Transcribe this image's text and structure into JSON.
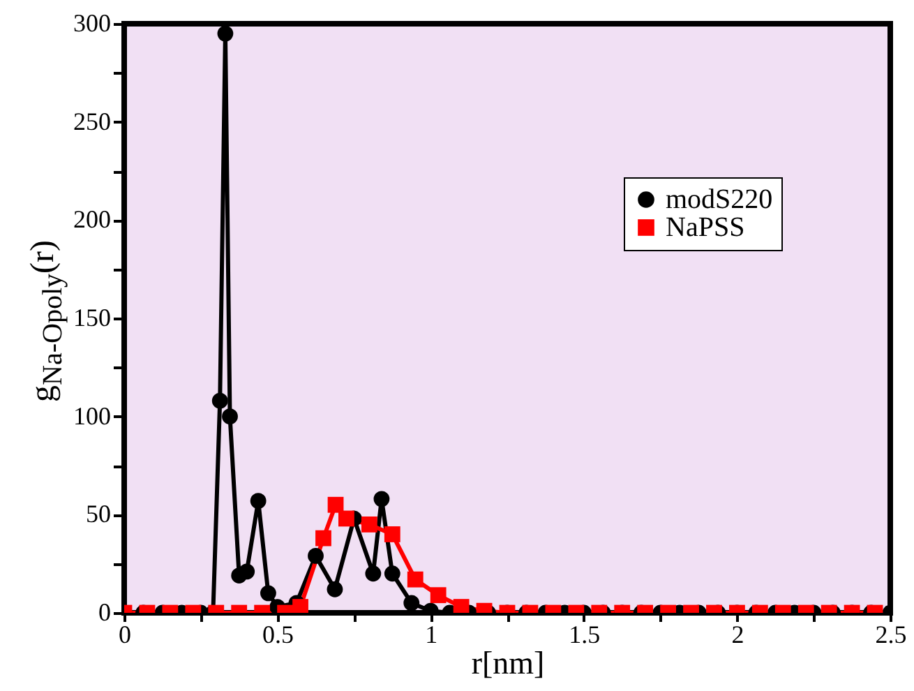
{
  "chart_data": {
    "type": "line",
    "xlabel": "r[nm]",
    "ylabel": "g$_{Na-Opoly}$(r)",
    "xlim": [
      0,
      2.5
    ],
    "xticks": [
      0,
      {
        "value": 0.25,
        "label": null
      },
      0.5,
      {
        "value": 0.75,
        "label": null
      },
      1,
      {
        "value": 1.25,
        "label": null
      },
      1.5,
      {
        "value": 1.75,
        "label": null
      },
      2,
      {
        "value": 2.25,
        "label": null
      },
      2.5
    ],
    "ylim": [
      0,
      300
    ],
    "yticks": [
      0,
      {
        "value": 25,
        "label": null
      },
      50,
      {
        "value": 75,
        "label": null
      },
      100,
      {
        "value": 125,
        "label": null
      },
      150,
      {
        "value": 175,
        "label": null
      },
      200,
      {
        "value": 225,
        "label": null
      },
      250,
      {
        "value": 275,
        "label": null
      },
      300
    ],
    "grid": false,
    "legend": "top right",
    "line_style": "solid",
    "series": [
      {
        "name": "modS220",
        "color": "#000000",
        "marker": "circle",
        "x": [
          0,
          0.0625,
          0.125,
          0.1875,
          0.25,
          0.29,
          0.3125,
          0.33,
          0.345,
          0.375,
          0.4,
          0.4375,
          0.47,
          0.5,
          0.5625,
          0.625,
          0.6875,
          0.75,
          0.8125,
          0.84,
          0.875,
          0.9375,
          1,
          1.0625,
          1.125,
          1.1875,
          1.25,
          1.3125,
          1.375,
          1.4375,
          1.5,
          1.5625,
          1.625,
          1.6875,
          1.75,
          1.8125,
          1.875,
          1.9375,
          2,
          2.0625,
          2.125,
          2.1875,
          2.25,
          2.3125,
          2.375,
          2.4375,
          2.5
        ],
        "values": [
          0,
          0,
          0,
          0,
          0,
          0,
          108,
          295,
          100,
          19,
          21,
          57,
          10,
          3,
          5,
          29,
          12,
          48,
          20,
          58,
          20,
          5,
          1,
          0,
          0,
          0,
          0,
          0,
          0,
          0,
          0,
          0,
          0,
          0,
          0,
          0,
          0,
          0,
          0,
          0,
          0,
          0,
          0,
          0,
          0,
          0,
          0
        ]
      },
      {
        "name": "NaPSS",
        "color": "#ff0000",
        "marker": "square",
        "x": [
          0,
          0.075,
          0.15,
          0.225,
          0.3,
          0.375,
          0.45,
          0.525,
          0.575,
          0.65,
          0.69,
          0.725,
          0.8,
          0.875,
          0.95,
          1.025,
          1.1,
          1.175,
          1.25,
          1.325,
          1.4,
          1.475,
          1.55,
          1.625,
          1.7,
          1.775,
          1.85,
          1.925,
          2,
          2.075,
          2.15,
          2.225,
          2.3,
          2.375,
          2.45
        ],
        "values": [
          0,
          0,
          0,
          0,
          0,
          0,
          0,
          0,
          3,
          38,
          55,
          48,
          45,
          40,
          17,
          9,
          3,
          1,
          0,
          0,
          0,
          0,
          0,
          0,
          0,
          0,
          0,
          0,
          0,
          0,
          0,
          0,
          0,
          0,
          0
        ]
      }
    ]
  }
}
